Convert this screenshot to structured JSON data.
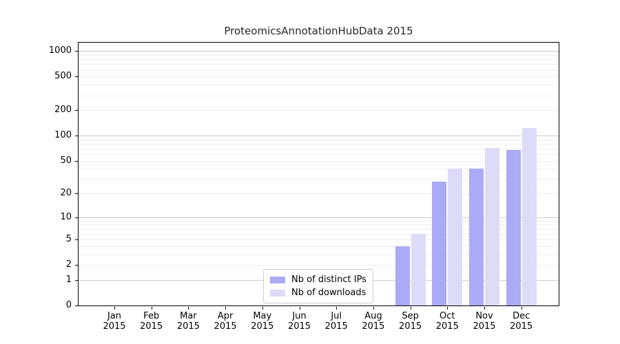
{
  "page": {
    "background": "#ffffff"
  },
  "chart_data": {
    "type": "bar",
    "title": "ProteomicsAnnotationHubData 2015",
    "year": "2015",
    "categories": [
      "Jan 2015",
      "Feb 2015",
      "Mar 2015",
      "Apr 2015",
      "May 2015",
      "Jun 2015",
      "Jul 2015",
      "Aug 2015",
      "Sep 2015",
      "Oct 2015",
      "Nov 2015",
      "Dec 2015"
    ],
    "month_labels": [
      "Jan",
      "Feb",
      "Mar",
      "Apr",
      "May",
      "Jun",
      "Jul",
      "Aug",
      "Sep",
      "Oct",
      "Nov",
      "Dec"
    ],
    "series": [
      {
        "name": "Nb of distinct IPs",
        "color": "#aaaaf7",
        "values": [
          0,
          0,
          0,
          0,
          0,
          0,
          0,
          0,
          4,
          28,
          40,
          67
        ]
      },
      {
        "name": "Nb of downloads",
        "color": "#dcdcf8",
        "values": [
          0,
          0,
          0,
          0,
          0,
          0,
          0,
          0,
          6,
          40,
          71,
          122
        ]
      }
    ],
    "yscale": "log1p",
    "y_ticks": [
      0,
      1,
      2,
      5,
      10,
      20,
      50,
      100,
      200,
      500,
      1000
    ],
    "ylim": [
      0,
      1258
    ],
    "grid": {
      "horizontal": true,
      "major_color": "#c9c9c9",
      "minor_color": "#ededed"
    },
    "legend": {
      "position": "bottom-center-left",
      "items": [
        "Nb of distinct IPs",
        "Nb of downloads"
      ]
    }
  },
  "colors": {
    "axis": "#000000",
    "text": "#262626"
  }
}
